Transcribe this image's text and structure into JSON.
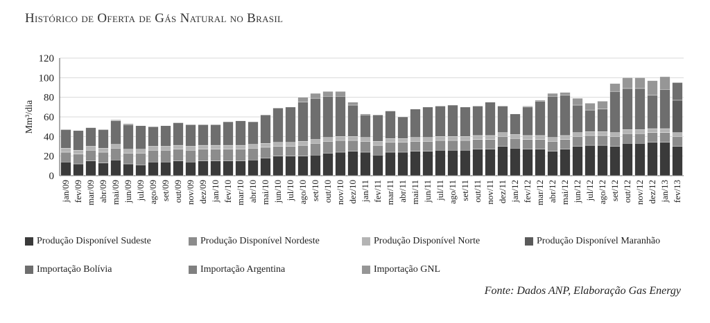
{
  "chart_data": {
    "type": "bar",
    "stacked": true,
    "title": "Histórico de Oferta de Gás Natural no Brasil",
    "ylabel": "Mm³/dia",
    "xlabel": "",
    "ylim": [
      0,
      120
    ],
    "yticks": [
      0,
      20,
      40,
      60,
      80,
      100,
      120
    ],
    "grid": true,
    "legend_position": "bottom",
    "source": "Fonte: Dados ANP, Elaboração Gas Energy",
    "categories": [
      "jan/09",
      "fev/09",
      "mar/09",
      "abr/09",
      "mai/09",
      "jun/09",
      "jul/09",
      "ago/09",
      "set/09",
      "out/09",
      "nov/09",
      "dez/09",
      "jan/10",
      "fev/10",
      "mar/10",
      "abr/10",
      "mai/10",
      "jun/10",
      "jul/10",
      "ago/10",
      "set/10",
      "out/10",
      "nov/10",
      "dez/10",
      "jan/11",
      "fev/11",
      "mar/11",
      "abr/11",
      "mai/11",
      "jun/11",
      "jul/11",
      "ago/11",
      "set/11",
      "out/11",
      "nov/11",
      "dez/11",
      "jan/12",
      "fev/12",
      "mar/12",
      "abr/12",
      "mai/12",
      "jun/12",
      "jul/12",
      "ago/12",
      "set/12",
      "out/12",
      "nov/12",
      "dez/12",
      "jan/13",
      "fev/13"
    ],
    "x_tick_labels": [
      "jan/09",
      "fev/09",
      "mar/09",
      "abr/09",
      "mai/09",
      "jun/09",
      "jul/09",
      "ago/09",
      "set/09",
      "out/09",
      "nov/09",
      "dez/09",
      "jan/10",
      "fev/10",
      "mar/10",
      "abr/10",
      "mai/10",
      "jun/10",
      "jul/10",
      "ago/10",
      "set/10",
      "out/10",
      "nov/10",
      "dez/10",
      "jan/11",
      "fev/11",
      "mar/11",
      "abr/11",
      "mai/11",
      "jun/11",
      "jul/11",
      "ago/11",
      "set/11",
      "out/11",
      "nov/11",
      "dez/11",
      "jan/12",
      "fev/12",
      "mar/12",
      "abr/12",
      "mai/12",
      "jun/12",
      "jul/12",
      "ago/12",
      "set/12",
      "out/12",
      "nov/12",
      "dez/12",
      "jan/13",
      "fev/13"
    ],
    "series": [
      {
        "name": "Produção Disponível Sudeste",
        "color": "#3a3a3a",
        "values": [
          14,
          12,
          15,
          13,
          16,
          12,
          11,
          14,
          14,
          15,
          14,
          15,
          15,
          15,
          15,
          16,
          18,
          20,
          20,
          20,
          21,
          23,
          24,
          25,
          24,
          21,
          24,
          24,
          25,
          25,
          26,
          26,
          26,
          27,
          27,
          30,
          28,
          27,
          27,
          25,
          27,
          30,
          31,
          31,
          30,
          33,
          33,
          34,
          34,
          30
        ]
      },
      {
        "name": "Produção Disponível Nordeste",
        "color": "#8c8c8c",
        "values": [
          10,
          10,
          11,
          11,
          12,
          11,
          12,
          12,
          12,
          12,
          12,
          12,
          12,
          12,
          12,
          12,
          11,
          10,
          10,
          11,
          12,
          12,
          12,
          11,
          11,
          10,
          10,
          10,
          10,
          10,
          10,
          10,
          10,
          10,
          10,
          10,
          10,
          10,
          10,
          10,
          10,
          10,
          10,
          10,
          10,
          10,
          10,
          10,
          10,
          10
        ]
      },
      {
        "name": "Produção Disponível Norte",
        "color": "#b4b4b4",
        "values": [
          4,
          4,
          4,
          4,
          4,
          4,
          4,
          4,
          4,
          4,
          4,
          4,
          4,
          4,
          4,
          4,
          4,
          4,
          4,
          4,
          4,
          4,
          4,
          4,
          4,
          4,
          4,
          4,
          4,
          4,
          4,
          4,
          4,
          4,
          4,
          4,
          4,
          4,
          4,
          4,
          4,
          4,
          4,
          4,
          4,
          4,
          4,
          4,
          4,
          4
        ]
      },
      {
        "name": "Produção Disponível Maranhão",
        "color": "#5a5a5a",
        "values": [
          0,
          0,
          0,
          0,
          0,
          0,
          0,
          0,
          0,
          0,
          0,
          0,
          0,
          0,
          0,
          0,
          0,
          0,
          0,
          0,
          0,
          0,
          0,
          0,
          0,
          0,
          0,
          0,
          0,
          0,
          0,
          0,
          0,
          0,
          0,
          0,
          0,
          0,
          0,
          0,
          0,
          0,
          0,
          0,
          0,
          0,
          0,
          0,
          0,
          33
        ]
      },
      {
        "name": "Importação Bolívia",
        "color": "#6e6e6e",
        "values": [
          19,
          20,
          19,
          19,
          24,
          25,
          24,
          20,
          21,
          23,
          22,
          21,
          21,
          24,
          25,
          23,
          29,
          35,
          36,
          40,
          42,
          42,
          41,
          32,
          23,
          27,
          28,
          22,
          29,
          31,
          31,
          32,
          30,
          30,
          34,
          27,
          21,
          29,
          35,
          42,
          41,
          28,
          22,
          23,
          42,
          42,
          42,
          34,
          40,
          18
        ]
      },
      {
        "name": "Importação Argentina",
        "color": "#808080",
        "values": [
          0,
          0,
          0,
          0,
          0,
          0,
          0,
          0,
          0,
          0,
          0,
          0,
          0,
          0,
          0,
          0,
          0,
          0,
          0,
          0,
          0,
          0,
          0,
          0,
          0,
          0,
          0,
          0,
          0,
          0,
          0,
          0,
          0,
          0,
          0,
          0,
          0,
          0,
          0,
          0,
          0,
          0,
          0,
          0,
          0,
          0,
          0,
          0,
          0,
          0
        ]
      },
      {
        "name": "Importação GNL",
        "color": "#969696",
        "values": [
          0,
          0,
          0,
          0,
          1,
          1,
          0,
          0,
          0,
          0,
          0,
          0,
          0,
          0,
          0,
          0,
          0,
          0,
          0,
          5,
          5,
          5,
          5,
          3,
          1,
          0,
          0,
          0,
          0,
          0,
          0,
          0,
          0,
          0,
          0,
          0,
          0,
          1,
          1,
          3,
          3,
          7,
          7,
          8,
          8,
          11,
          11,
          15,
          13,
          0
        ]
      }
    ]
  }
}
